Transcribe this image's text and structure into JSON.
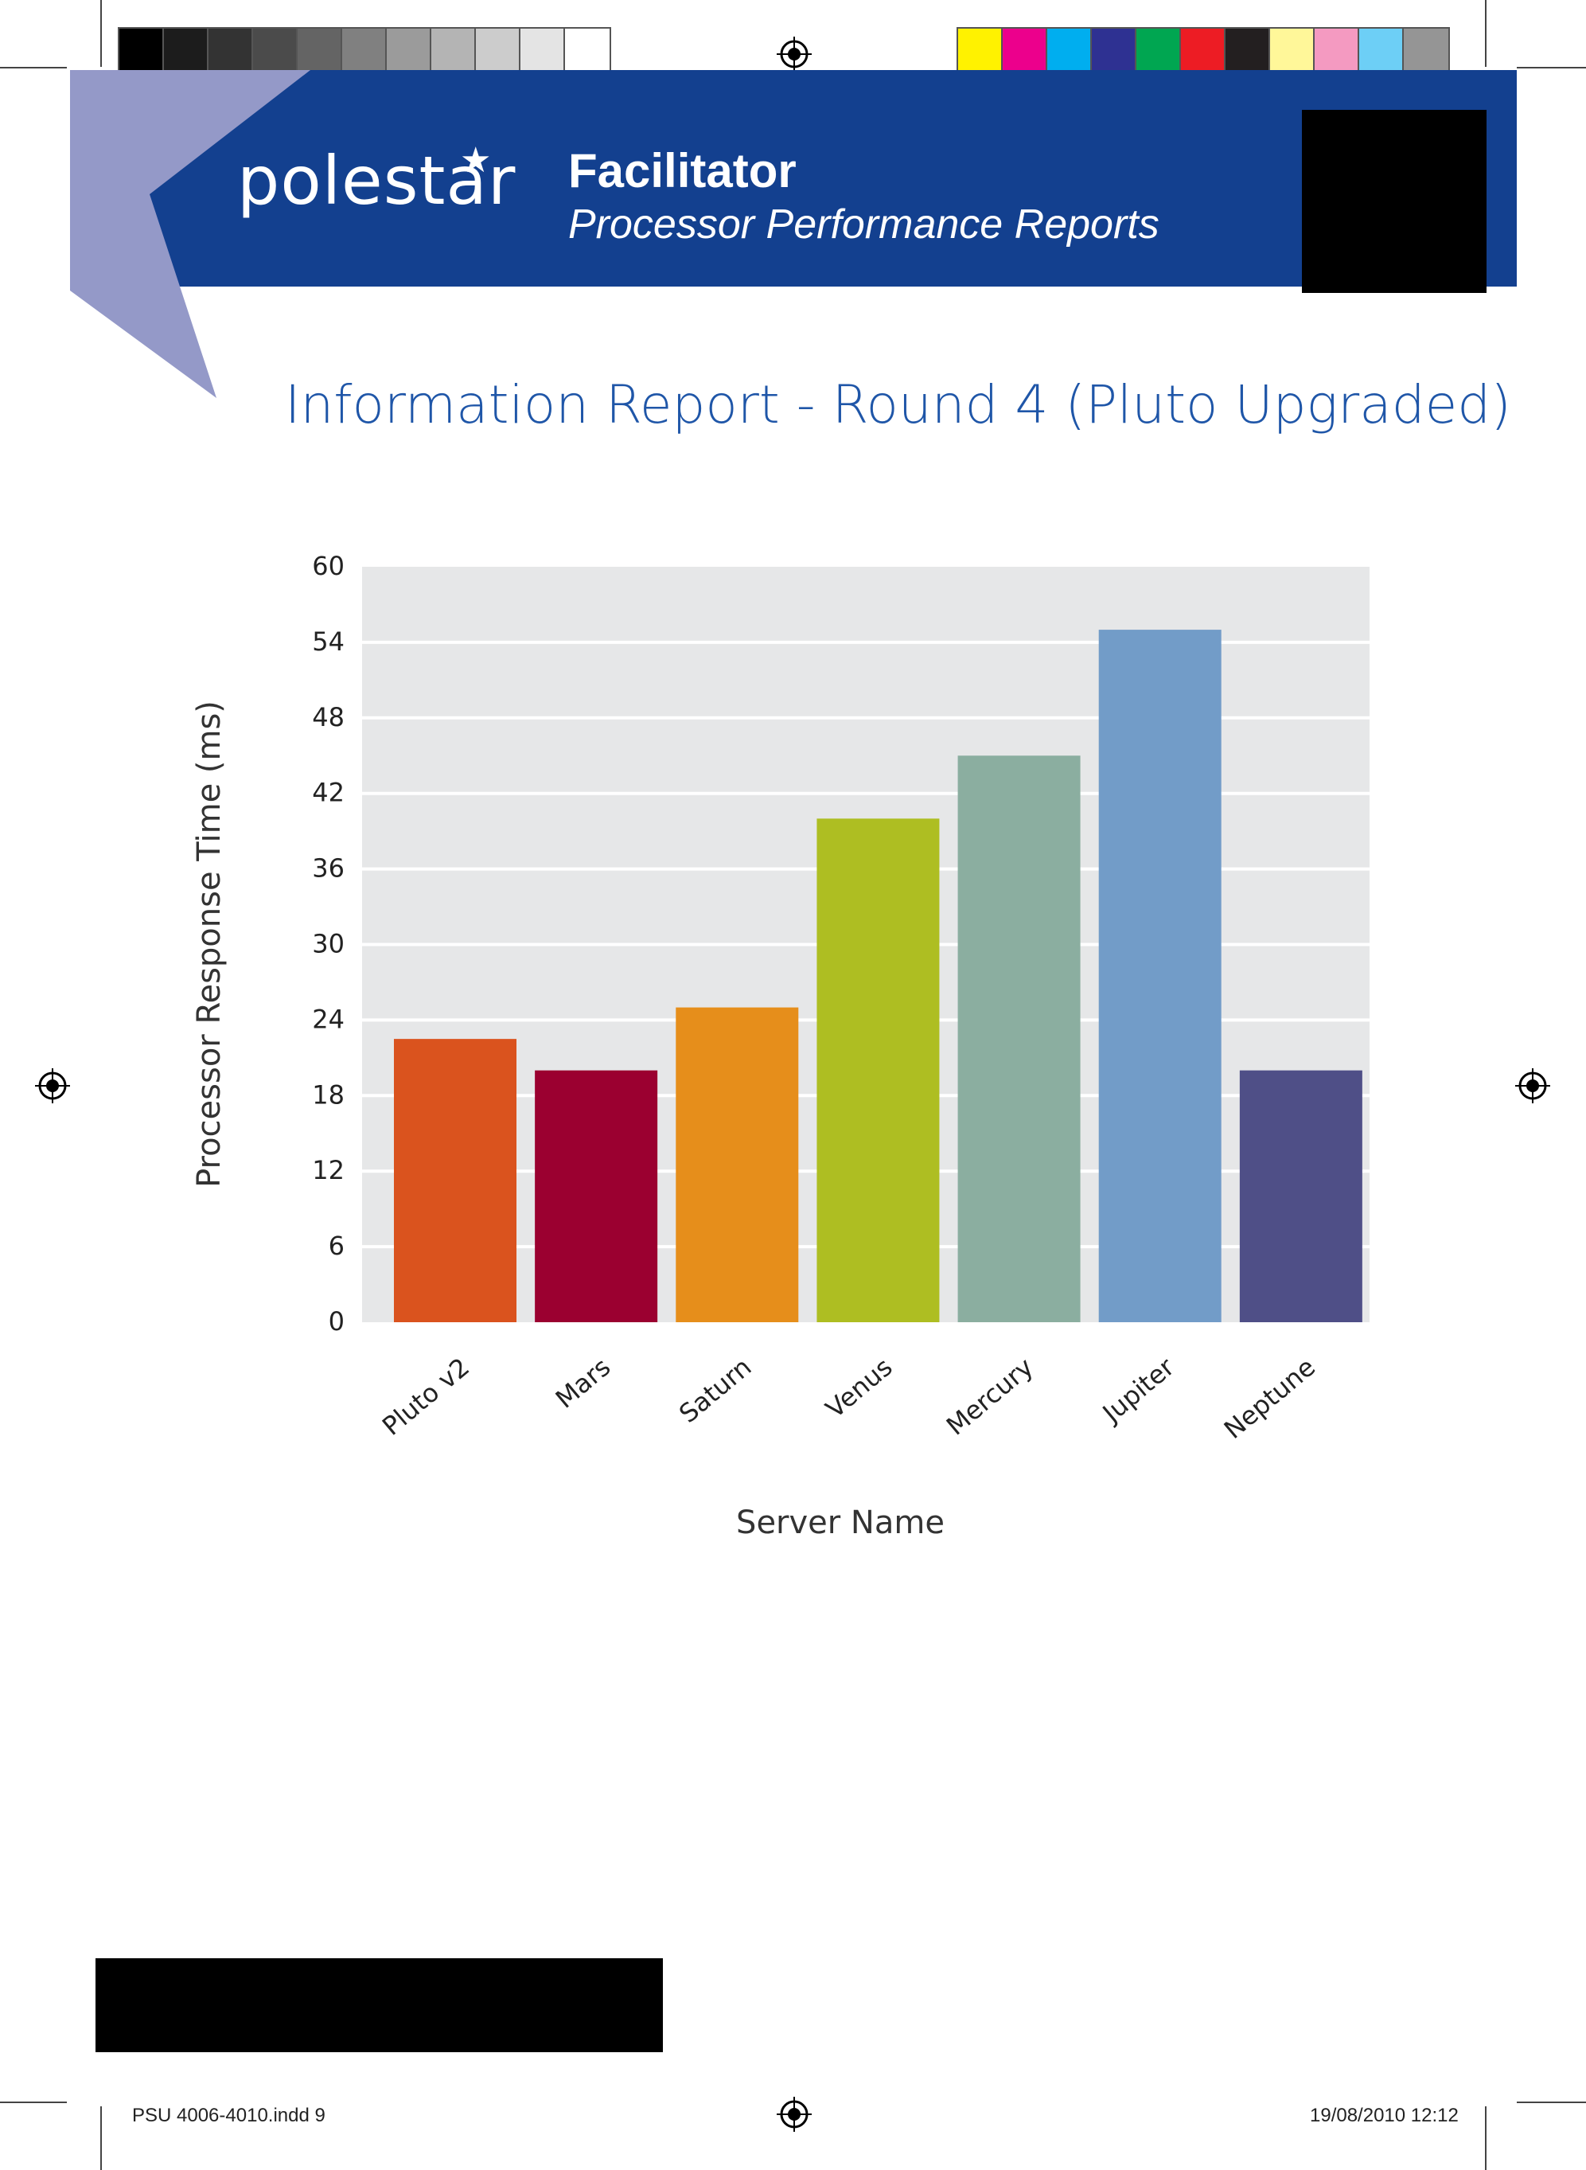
{
  "header": {
    "brand": "polestar",
    "brand_star": "★",
    "title": "Facilitator",
    "subtitle": "Processor Performance Reports"
  },
  "report": {
    "title": "Information Report  - Round 4 (Pluto Upgraded)"
  },
  "color_bar": {
    "grays": [
      "#000000",
      "#1c1c1c",
      "#333333",
      "#4b4b4b",
      "#646464",
      "#808080",
      "#9b9b9b",
      "#b4b4b4",
      "#cccccc",
      "#e4e4e4",
      "#ffffff"
    ],
    "process": [
      "#fff200",
      "#ec008c",
      "#00aeef",
      "#2e3192",
      "#00a651",
      "#ed1c24",
      "#231f20",
      "#fff799",
      "#f49ac1",
      "#6dcff6",
      "#959595"
    ]
  },
  "colors": {
    "banner": "#13408f",
    "wedge": "#9499c8",
    "plot_bg": "#e6e7e8",
    "title_blue": "#1f56a8"
  },
  "chart_data": {
    "type": "bar",
    "categories": [
      "Pluto v2",
      "Mars",
      "Saturn",
      "Venus",
      "Mercury",
      "Jupiter",
      "Neptune"
    ],
    "values": [
      22.5,
      20,
      25,
      40,
      45,
      55,
      20
    ],
    "bar_colors": [
      "#da531e",
      "#9b0030",
      "#e68e1b",
      "#aebe22",
      "#8baea0",
      "#729cc8",
      "#4f4f87"
    ],
    "yticks": [
      0,
      6,
      12,
      18,
      24,
      30,
      36,
      42,
      48,
      54,
      60
    ],
    "ylim": [
      0,
      60
    ],
    "xlabel": "Server Name",
    "ylabel": "Processor Response Time (ms)",
    "grid": true
  },
  "footer": {
    "file": "PSU 4006-4010.indd   9",
    "date": "19/08/2010   12:12"
  }
}
